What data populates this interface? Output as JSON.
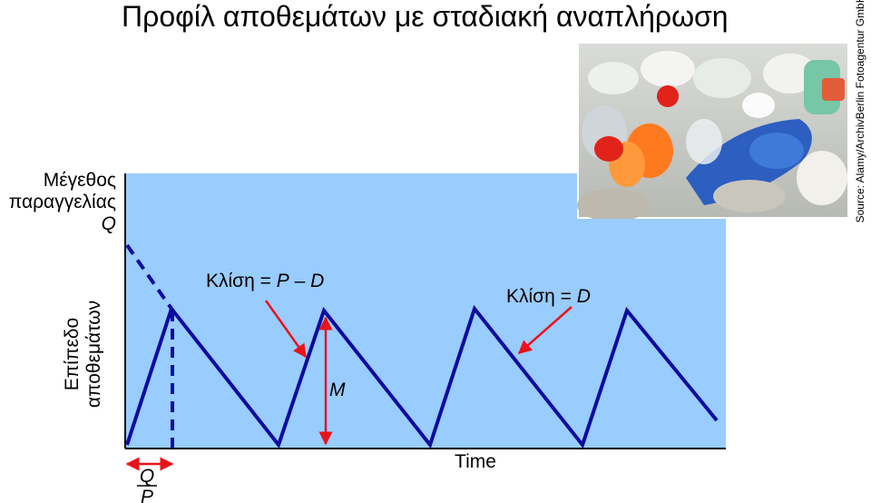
{
  "title": "Προφίλ αποθεμάτων με σταδιακή αναπλήρωση",
  "order_size_label": {
    "line1": "Μέγεθος",
    "line2": "παραγγελίας",
    "symbol": "Q"
  },
  "y_axis_label": {
    "line1": "Επίπεδο",
    "line2": "αποθεμάτων"
  },
  "x_axis_label": "Time",
  "slope_up_label": {
    "prefix": "Κλίση = ",
    "p": "P",
    "minus": " – ",
    "d": "D"
  },
  "slope_down_label": {
    "prefix": "Κλίση = ",
    "d": "D"
  },
  "max_inventory_label": "M",
  "production_time_label": {
    "numerator": "Q",
    "denominator": "P"
  },
  "source": "Source: Alamy/ArchivBerlin Fotoagentur GmbH",
  "colors": {
    "background_panel": "#99ccff",
    "line": "#0b0b9e",
    "arrow": "#e8141b"
  },
  "image": {
    "subject": "pile of plastic bottles and containers",
    "icon": "photo-plastic-bottles"
  }
}
